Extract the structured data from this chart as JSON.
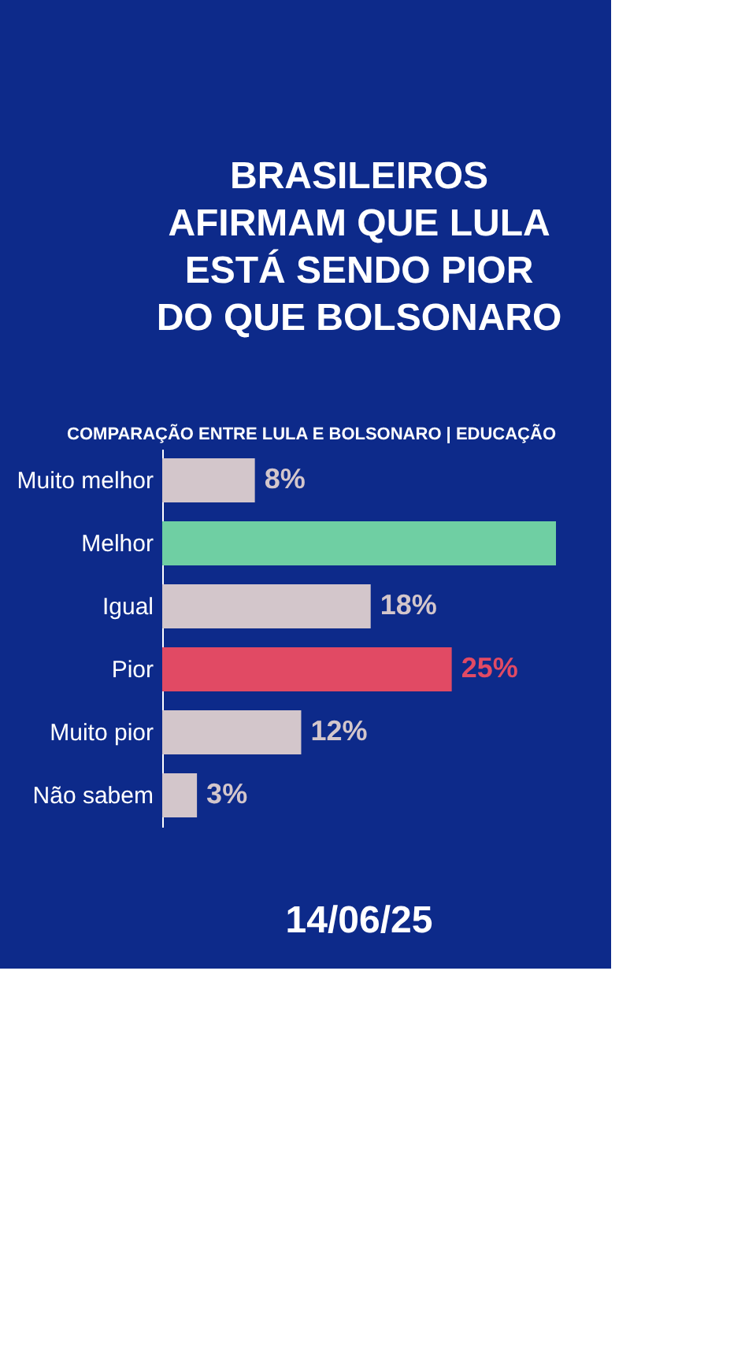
{
  "chart_data": {
    "type": "bar",
    "orientation": "horizontal",
    "title": [
      "BRASILEIROS",
      "AFIRMAM QUE LULA",
      "ESTÁ SENDO PIOR",
      "DO QUE BOLSONARO"
    ],
    "subtitle": "COMPARAÇÃO ENTRE LULA E BOLSONARO | EDUCAÇÃO",
    "categories": [
      "Muito melhor",
      "Melhor",
      "Igual",
      "Pior",
      "Muito pior",
      "Não sabem"
    ],
    "values": [
      8,
      34,
      18,
      25,
      12,
      3
    ],
    "value_labels": [
      "8%",
      null,
      "18%",
      "25%",
      "12%",
      "3%"
    ],
    "colors": [
      "#d3c6cb",
      "#6fcfa3",
      "#d3c6cb",
      "#e14a64",
      "#d3c6cb",
      "#d3c6cb"
    ],
    "annotations": [
      "14/06/25"
    ],
    "tick_labels": "y"
  }
}
